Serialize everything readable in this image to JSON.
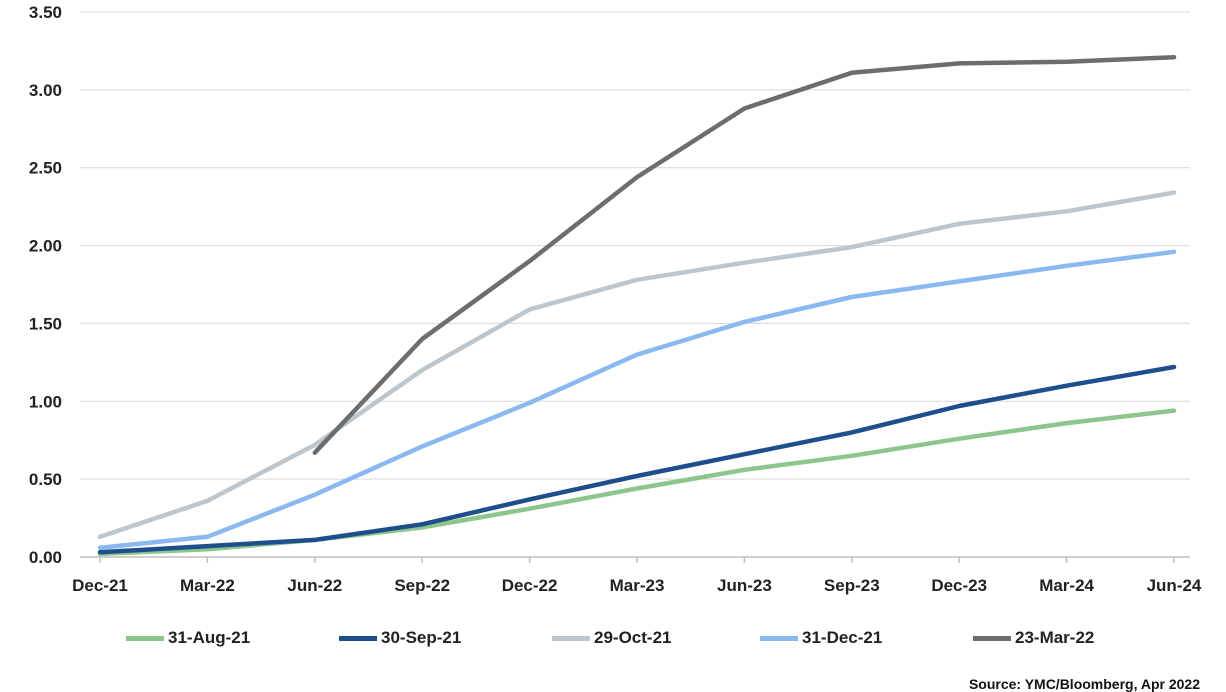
{
  "chart_data": {
    "type": "line",
    "title": "",
    "xlabel": "",
    "ylabel": "",
    "categories": [
      "Dec-21",
      "Mar-22",
      "Jun-22",
      "Sep-22",
      "Dec-22",
      "Mar-23",
      "Jun-23",
      "Sep-23",
      "Dec-23",
      "Mar-24",
      "Jun-24"
    ],
    "ylim": [
      0,
      3.5
    ],
    "yticks": [
      "0.00",
      "0.50",
      "1.00",
      "1.50",
      "2.00",
      "2.50",
      "3.00",
      "3.50"
    ],
    "grid": true,
    "legend_position": "bottom",
    "series": [
      {
        "name": "31-Aug-21",
        "color": "#8cc68c",
        "values": [
          0.02,
          0.05,
          0.11,
          0.19,
          0.31,
          0.44,
          0.56,
          0.65,
          0.76,
          0.86,
          0.94
        ]
      },
      {
        "name": "30-Sep-21",
        "color": "#1f4e8c",
        "values": [
          0.03,
          0.07,
          0.11,
          0.21,
          0.37,
          0.52,
          0.66,
          0.8,
          0.97,
          1.1,
          1.22
        ]
      },
      {
        "name": "29-Oct-21",
        "color": "#bcc6ce",
        "values": [
          0.13,
          0.36,
          0.72,
          1.2,
          1.59,
          1.78,
          1.89,
          1.99,
          2.14,
          2.22,
          2.34
        ]
      },
      {
        "name": "31-Dec-21",
        "color": "#8ab8f0",
        "values": [
          0.06,
          0.13,
          0.4,
          0.71,
          0.99,
          1.3,
          1.51,
          1.67,
          1.77,
          1.87,
          1.96
        ]
      },
      {
        "name": "23-Mar-22",
        "color": "#6b6e6e",
        "values": [
          null,
          null,
          0.67,
          1.4,
          1.9,
          2.44,
          2.88,
          3.11,
          3.17,
          3.18,
          3.21
        ]
      }
    ]
  },
  "source": "Source: YMC/Bloomberg, Apr 2022"
}
